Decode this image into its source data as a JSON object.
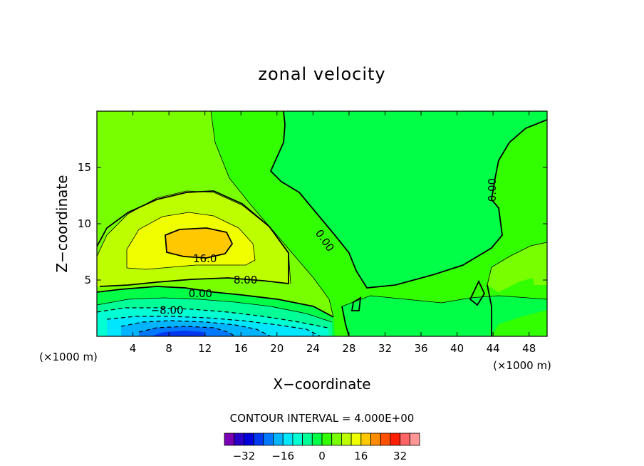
{
  "chart_data": {
    "type": "heatmap",
    "title": "zonal velocity",
    "xlabel": "X−coordinate",
    "ylabel": "Z−coordinate",
    "x_unit": "(×1000 m)",
    "y_unit": "(×1000 m)",
    "xlim": [
      0,
      50
    ],
    "ylim": [
      0,
      20
    ],
    "x_ticks": [
      4,
      8,
      12,
      16,
      20,
      24,
      28,
      32,
      36,
      40,
      44,
      48
    ],
    "y_ticks": [
      5,
      10,
      15
    ],
    "x_tick_labels": [
      "4",
      "8",
      "12",
      "16",
      "20",
      "24",
      "28",
      "32",
      "36",
      "40",
      "44",
      "48"
    ],
    "y_tick_labels": [
      "5",
      "10",
      "15"
    ],
    "contour_interval_text": "CONTOUR INTERVAL = 4.000E+00",
    "contour_labels": [
      {
        "text": "16.0",
        "x": 12.0,
        "y": 6.9
      },
      {
        "text": "8.00",
        "x": 16.5,
        "y": 5.0
      },
      {
        "text": "0.00",
        "x": 11.5,
        "y": 3.8
      },
      {
        "text": "−8.00",
        "x": 7.8,
        "y": 2.3
      },
      {
        "text": "0.00",
        "x": 25.3,
        "y": 8.5
      },
      {
        "text": "0.00",
        "x": 43.9,
        "y": 13.0
      }
    ],
    "colorbar": {
      "levels": [
        -36,
        -32,
        -28,
        -24,
        -20,
        -16,
        -12,
        -8,
        -4,
        0,
        4,
        8,
        12,
        16,
        20,
        24,
        28,
        32,
        36
      ],
      "tick_labels": [
        "−32",
        "−16",
        "0",
        "16",
        "32"
      ],
      "tick_values": [
        -32,
        -16,
        0,
        16,
        32
      ],
      "colors": [
        "#7a00b4",
        "#2a00c8",
        "#0000dc",
        "#0038f0",
        "#0078ff",
        "#00b4ff",
        "#00e6ff",
        "#00ffd2",
        "#00ff96",
        "#00ff46",
        "#32ff00",
        "#78ff00",
        "#beff00",
        "#f0ff00",
        "#ffc800",
        "#ff8c00",
        "#ff5000",
        "#ff1e00",
        "#ff6464",
        "#ff9696"
      ]
    },
    "regions": [
      {
        "level_range": [
          0,
          4
        ],
        "color": "#00ff46",
        "description": "background"
      },
      {
        "level_range": [
          4,
          8
        ],
        "color": "#32ff00"
      },
      {
        "level_range": [
          8,
          12
        ],
        "color": "#78ff00"
      },
      {
        "level_range": [
          12,
          16
        ],
        "color": "#beff00"
      },
      {
        "level_range": [
          16,
          20
        ],
        "color": "#f0ff00"
      },
      {
        "level_range": [
          20,
          24
        ],
        "color": "#ffc800"
      }
    ],
    "grid": false
  }
}
